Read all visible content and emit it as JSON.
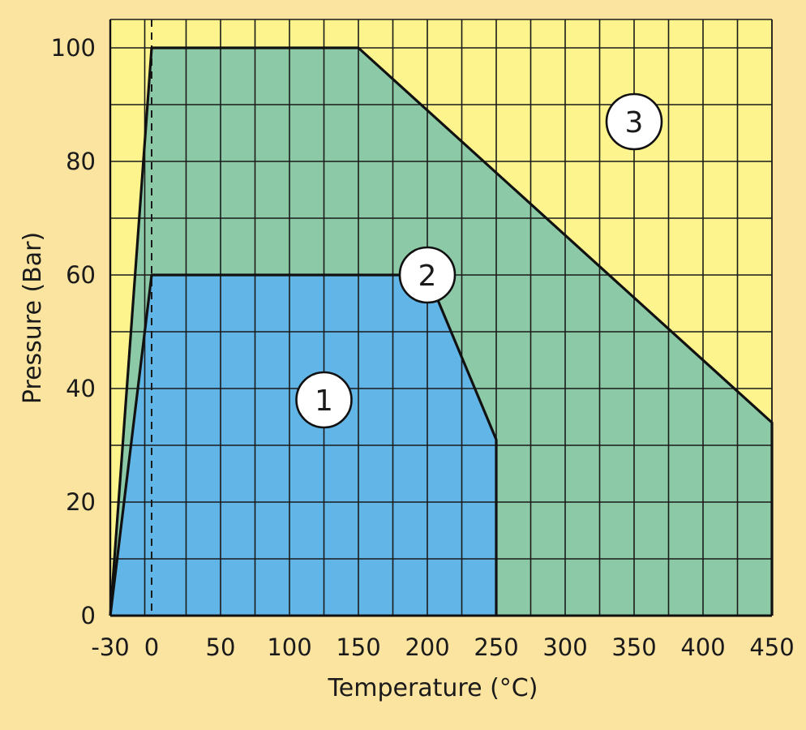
{
  "chart_data": {
    "type": "area",
    "title": "",
    "xlabel": "Temperature (°C)",
    "ylabel": "Pressure (Bar)",
    "xlim": [
      -30,
      450
    ],
    "ylim": [
      0,
      105
    ],
    "x_ticks": [
      {
        "value": -30,
        "label": "-30"
      },
      {
        "value": 0,
        "label": "0"
      },
      {
        "value": 50,
        "label": "50"
      },
      {
        "value": 100,
        "label": "100"
      },
      {
        "value": 150,
        "label": "150"
      },
      {
        "value": 200,
        "label": "200"
      },
      {
        "value": 250,
        "label": "250"
      },
      {
        "value": 300,
        "label": "300"
      },
      {
        "value": 350,
        "label": "350"
      },
      {
        "value": 400,
        "label": "400"
      },
      {
        "value": 450,
        "label": "450"
      }
    ],
    "y_ticks": [
      {
        "value": 0,
        "label": "0"
      },
      {
        "value": 20,
        "label": "20"
      },
      {
        "value": 40,
        "label": "40"
      },
      {
        "value": 60,
        "label": "60"
      },
      {
        "value": 80,
        "label": "80"
      },
      {
        "value": 100,
        "label": "100"
      }
    ],
    "x_gridlines": [
      -30,
      -5,
      25,
      50,
      75,
      100,
      125,
      150,
      175,
      200,
      225,
      250,
      275,
      300,
      325,
      350,
      375,
      400,
      425,
      450
    ],
    "y_gridlines": [
      0,
      10,
      20,
      30,
      40,
      50,
      60,
      70,
      80,
      90,
      100
    ],
    "grid": true,
    "reference_line": {
      "x": 0,
      "style": "dashed"
    },
    "colors": {
      "background": "#fbe3a0",
      "zone3": "#fdf48d",
      "zone2": "#8ccaa7",
      "zone1": "#62b5e7",
      "grid": "#1a1a1a"
    },
    "regions": [
      {
        "name": "zone-2",
        "label": "2",
        "points": [
          [
            -30,
            0
          ],
          [
            0,
            100
          ],
          [
            150,
            100
          ],
          [
            450,
            34
          ],
          [
            450,
            0
          ]
        ],
        "label_pos": [
          200,
          60
        ]
      },
      {
        "name": "zone-1",
        "label": "1",
        "points": [
          [
            -30,
            0
          ],
          [
            0,
            60
          ],
          [
            200,
            60
          ],
          [
            250,
            31
          ],
          [
            250,
            0
          ]
        ],
        "label_pos": [
          125,
          38
        ]
      }
    ],
    "zone3_label": {
      "label": "3",
      "pos": [
        350,
        87
      ]
    }
  }
}
